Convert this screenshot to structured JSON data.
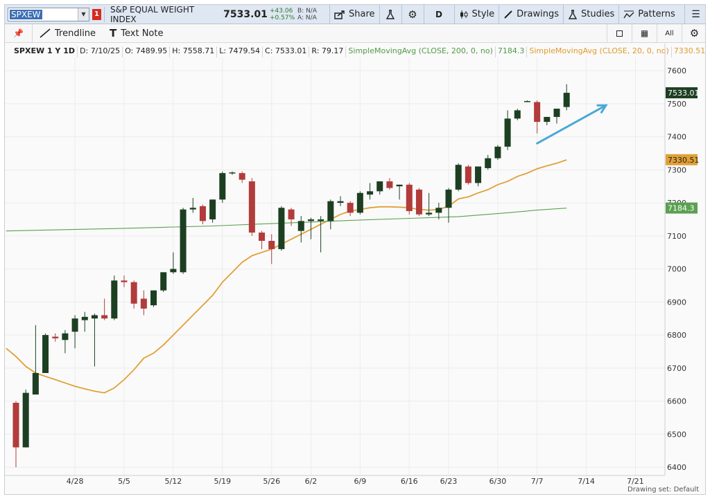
{
  "toolbar": {
    "symbol": "SPXEW",
    "link_badge": "1",
    "title": "S&P EQUAL WEIGHT INDEX",
    "last_price": "7533.01",
    "change_abs": "+43.06",
    "change_pct": "+0.57%",
    "bid": "B: N/A",
    "ask": "A: N/A",
    "share_label": "Share",
    "aggregation": "D",
    "style_label": "Style",
    "drawings_label": "Drawings",
    "studies_label": "Studies",
    "patterns_label": "Patterns"
  },
  "drawing_toolbar": {
    "trendline_label": "Trendline",
    "text_note_label": "Text Note",
    "all_label": "All"
  },
  "info_line": {
    "title": "SPXEW 1 Y 1D",
    "date": "D: 7/10/25",
    "open": "O: 7489.95",
    "high": "H: 7558.71",
    "low": "L: 7479.54",
    "close": "C: 7533.01",
    "range": "R: 79.17",
    "sma200_label": "SimpleMovingAvg (CLOSE, 200, 0, no)",
    "sma200_value": "7184.3",
    "sma20_label": "SimpleMovingAvg (CLOSE, 20, 0, no)",
    "sma20_value": "7330.51"
  },
  "bottom_bar": {
    "drawing_set": "Drawing set: Default"
  },
  "colors": {
    "up": "#1c3f22",
    "down": "#b23b3b",
    "sma20": "#e0a035",
    "sma200": "#5aa050",
    "arrow": "#4aa8d8"
  },
  "chart_data": {
    "type": "candlestick",
    "title": "",
    "xlabel": "",
    "ylabel": "",
    "ylim": [
      6375,
      7640
    ],
    "xlim": [
      0,
      66
    ],
    "y_ticks": [
      6400,
      6500,
      6600,
      6700,
      6800,
      6900,
      7000,
      7100,
      7200,
      7300,
      7400,
      7500,
      7600
    ],
    "x_ticks": [
      {
        "label": "4/28",
        "x": 6
      },
      {
        "label": "5/5",
        "x": 11
      },
      {
        "label": "5/12",
        "x": 16
      },
      {
        "label": "5/19",
        "x": 21
      },
      {
        "label": "5/26",
        "x": 26
      },
      {
        "label": "6/2",
        "x": 30
      },
      {
        "label": "6/9",
        "x": 35
      },
      {
        "label": "6/16",
        "x": 40
      },
      {
        "label": "6/23",
        "x": 44
      },
      {
        "label": "6/30",
        "x": 49
      },
      {
        "label": "7/7",
        "x": 53
      },
      {
        "label": "7/14",
        "x": 58
      },
      {
        "label": "7/21",
        "x": 63
      }
    ],
    "candles": [
      {
        "x": 0,
        "o": 6595,
        "h": 6600,
        "l": 6400,
        "c": 6460
      },
      {
        "x": 1,
        "o": 6460,
        "h": 6635,
        "l": 6460,
        "c": 6625
      },
      {
        "x": 2,
        "o": 6620,
        "h": 6830,
        "l": 6620,
        "c": 6685
      },
      {
        "x": 3,
        "o": 6685,
        "h": 6805,
        "l": 6685,
        "c": 6800
      },
      {
        "x": 4,
        "o": 6795,
        "h": 6805,
        "l": 6780,
        "c": 6790
      },
      {
        "x": 5,
        "o": 6785,
        "h": 6815,
        "l": 6745,
        "c": 6805
      },
      {
        "x": 6,
        "o": 6810,
        "h": 6860,
        "l": 6760,
        "c": 6850
      },
      {
        "x": 7,
        "o": 6845,
        "h": 6870,
        "l": 6810,
        "c": 6855
      },
      {
        "x": 8,
        "o": 6850,
        "h": 6865,
        "l": 6705,
        "c": 6860
      },
      {
        "x": 9,
        "o": 6860,
        "h": 6910,
        "l": 6845,
        "c": 6850
      },
      {
        "x": 10,
        "o": 6850,
        "h": 6980,
        "l": 6845,
        "c": 6965
      },
      {
        "x": 11,
        "o": 6965,
        "h": 6980,
        "l": 6945,
        "c": 6960
      },
      {
        "x": 12,
        "o": 6960,
        "h": 6965,
        "l": 6880,
        "c": 6895
      },
      {
        "x": 13,
        "o": 6910,
        "h": 6935,
        "l": 6860,
        "c": 6880
      },
      {
        "x": 14,
        "o": 6890,
        "h": 6935,
        "l": 6885,
        "c": 6935
      },
      {
        "x": 15,
        "o": 6935,
        "h": 6990,
        "l": 6930,
        "c": 6990
      },
      {
        "x": 16,
        "o": 6990,
        "h": 7050,
        "l": 6985,
        "c": 7000
      },
      {
        "x": 17,
        "o": 6990,
        "h": 7185,
        "l": 6985,
        "c": 7180
      },
      {
        "x": 18,
        "o": 7180,
        "h": 7215,
        "l": 7170,
        "c": 7185
      },
      {
        "x": 19,
        "o": 7190,
        "h": 7195,
        "l": 7135,
        "c": 7145
      },
      {
        "x": 20,
        "o": 7150,
        "h": 7210,
        "l": 7140,
        "c": 7210
      },
      {
        "x": 21,
        "o": 7210,
        "h": 7295,
        "l": 7200,
        "c": 7290
      },
      {
        "x": 22,
        "o": 7290,
        "h": 7295,
        "l": 7285,
        "c": 7292
      },
      {
        "x": 23,
        "o": 7290,
        "h": 7295,
        "l": 7260,
        "c": 7270
      },
      {
        "x": 24,
        "o": 7265,
        "h": 7275,
        "l": 7100,
        "c": 7110
      },
      {
        "x": 25,
        "o": 7110,
        "h": 7115,
        "l": 7060,
        "c": 7085
      },
      {
        "x": 26,
        "o": 7085,
        "h": 7105,
        "l": 7015,
        "c": 7060
      },
      {
        "x": 27,
        "o": 7060,
        "h": 7190,
        "l": 7055,
        "c": 7185
      },
      {
        "x": 28,
        "o": 7180,
        "h": 7185,
        "l": 7130,
        "c": 7150
      },
      {
        "x": 29,
        "o": 7115,
        "h": 7160,
        "l": 7080,
        "c": 7145
      },
      {
        "x": 30,
        "o": 7145,
        "h": 7155,
        "l": 7090,
        "c": 7150
      },
      {
        "x": 31,
        "o": 7145,
        "h": 7160,
        "l": 7050,
        "c": 7150
      },
      {
        "x": 32,
        "o": 7145,
        "h": 7210,
        "l": 7120,
        "c": 7205
      },
      {
        "x": 33,
        "o": 7200,
        "h": 7220,
        "l": 7190,
        "c": 7205
      },
      {
        "x": 34,
        "o": 7200,
        "h": 7205,
        "l": 7160,
        "c": 7170
      },
      {
        "x": 35,
        "o": 7170,
        "h": 7235,
        "l": 7165,
        "c": 7230
      },
      {
        "x": 36,
        "o": 7225,
        "h": 7260,
        "l": 7210,
        "c": 7235
      },
      {
        "x": 37,
        "o": 7235,
        "h": 7265,
        "l": 7225,
        "c": 7265
      },
      {
        "x": 38,
        "o": 7265,
        "h": 7275,
        "l": 7240,
        "c": 7245
      },
      {
        "x": 39,
        "o": 7250,
        "h": 7255,
        "l": 7210,
        "c": 7255
      },
      {
        "x": 40,
        "o": 7255,
        "h": 7260,
        "l": 7165,
        "c": 7175
      },
      {
        "x": 41,
        "o": 7240,
        "h": 7245,
        "l": 7160,
        "c": 7165
      },
      {
        "x": 42,
        "o": 7165,
        "h": 7230,
        "l": 7160,
        "c": 7170
      },
      {
        "x": 43,
        "o": 7170,
        "h": 7200,
        "l": 7150,
        "c": 7185
      },
      {
        "x": 44,
        "o": 7185,
        "h": 7245,
        "l": 7140,
        "c": 7240
      },
      {
        "x": 45,
        "o": 7240,
        "h": 7320,
        "l": 7235,
        "c": 7315
      },
      {
        "x": 46,
        "o": 7310,
        "h": 7315,
        "l": 7255,
        "c": 7260
      },
      {
        "x": 47,
        "o": 7260,
        "h": 7310,
        "l": 7250,
        "c": 7310
      },
      {
        "x": 48,
        "o": 7305,
        "h": 7345,
        "l": 7300,
        "c": 7335
      },
      {
        "x": 49,
        "o": 7335,
        "h": 7375,
        "l": 7330,
        "c": 7370
      },
      {
        "x": 50,
        "o": 7370,
        "h": 7480,
        "l": 7360,
        "c": 7455
      },
      {
        "x": 51,
        "o": 7455,
        "h": 7485,
        "l": 7450,
        "c": 7480
      },
      {
        "x": 52,
        "o": 7505,
        "h": 7510,
        "l": 7505,
        "c": 7508
      },
      {
        "x": 53,
        "o": 7505,
        "h": 7510,
        "l": 7410,
        "c": 7445
      },
      {
        "x": 54,
        "o": 7445,
        "h": 7460,
        "l": 7435,
        "c": 7460
      },
      {
        "x": 55,
        "o": 7460,
        "h": 7480,
        "l": 7440,
        "c": 7485
      },
      {
        "x": 56,
        "o": 7490,
        "h": 7559,
        "l": 7480,
        "c": 7533
      }
    ],
    "series": [
      {
        "name": "SimpleMovingAvg (CLOSE, 20, 0, no)",
        "x": [
          -1,
          0,
          1,
          2,
          3,
          4,
          5,
          6,
          7,
          8,
          9,
          10,
          11,
          12,
          13,
          14,
          15,
          16,
          17,
          18,
          19,
          20,
          21,
          22,
          23,
          24,
          25,
          26,
          27,
          28,
          29,
          30,
          31,
          32,
          33,
          34,
          35,
          36,
          37,
          38,
          39,
          40,
          41,
          42,
          43,
          44,
          45,
          46,
          47,
          48,
          49,
          50,
          51,
          52,
          53,
          54,
          55,
          56
        ],
        "values": [
          6760,
          6735,
          6705,
          6685,
          6675,
          6665,
          6655,
          6645,
          6637,
          6630,
          6625,
          6640,
          6665,
          6695,
          6730,
          6745,
          6770,
          6800,
          6830,
          6860,
          6890,
          6920,
          6960,
          6990,
          7020,
          7040,
          7050,
          7060,
          7075,
          7090,
          7105,
          7120,
          7135,
          7150,
          7165,
          7175,
          7180,
          7185,
          7188,
          7188,
          7187,
          7185,
          7180,
          7178,
          7180,
          7190,
          7212,
          7218,
          7230,
          7240,
          7255,
          7265,
          7280,
          7290,
          7303,
          7312,
          7320,
          7330
        ]
      },
      {
        "name": "SimpleMovingAvg (CLOSE, 200, 0, no)",
        "x": [
          -1,
          5,
          10,
          15,
          20,
          25,
          30,
          35,
          40,
          45,
          50,
          53,
          56
        ],
        "values": [
          7115,
          7119,
          7122,
          7126,
          7130,
          7136,
          7142,
          7148,
          7153,
          7158,
          7170,
          7178,
          7184
        ]
      }
    ],
    "price_labels": [
      {
        "label": "7533.01",
        "y": 7533.01
      },
      {
        "label": "7330.51",
        "y": 7330.51
      },
      {
        "label": "7184.3",
        "y": 7184.3
      }
    ],
    "annotations": [
      {
        "type": "arrow",
        "x0": 53,
        "y0": 7380,
        "x1": 60,
        "y1": 7495
      }
    ],
    "grid": true,
    "legend": "none"
  }
}
